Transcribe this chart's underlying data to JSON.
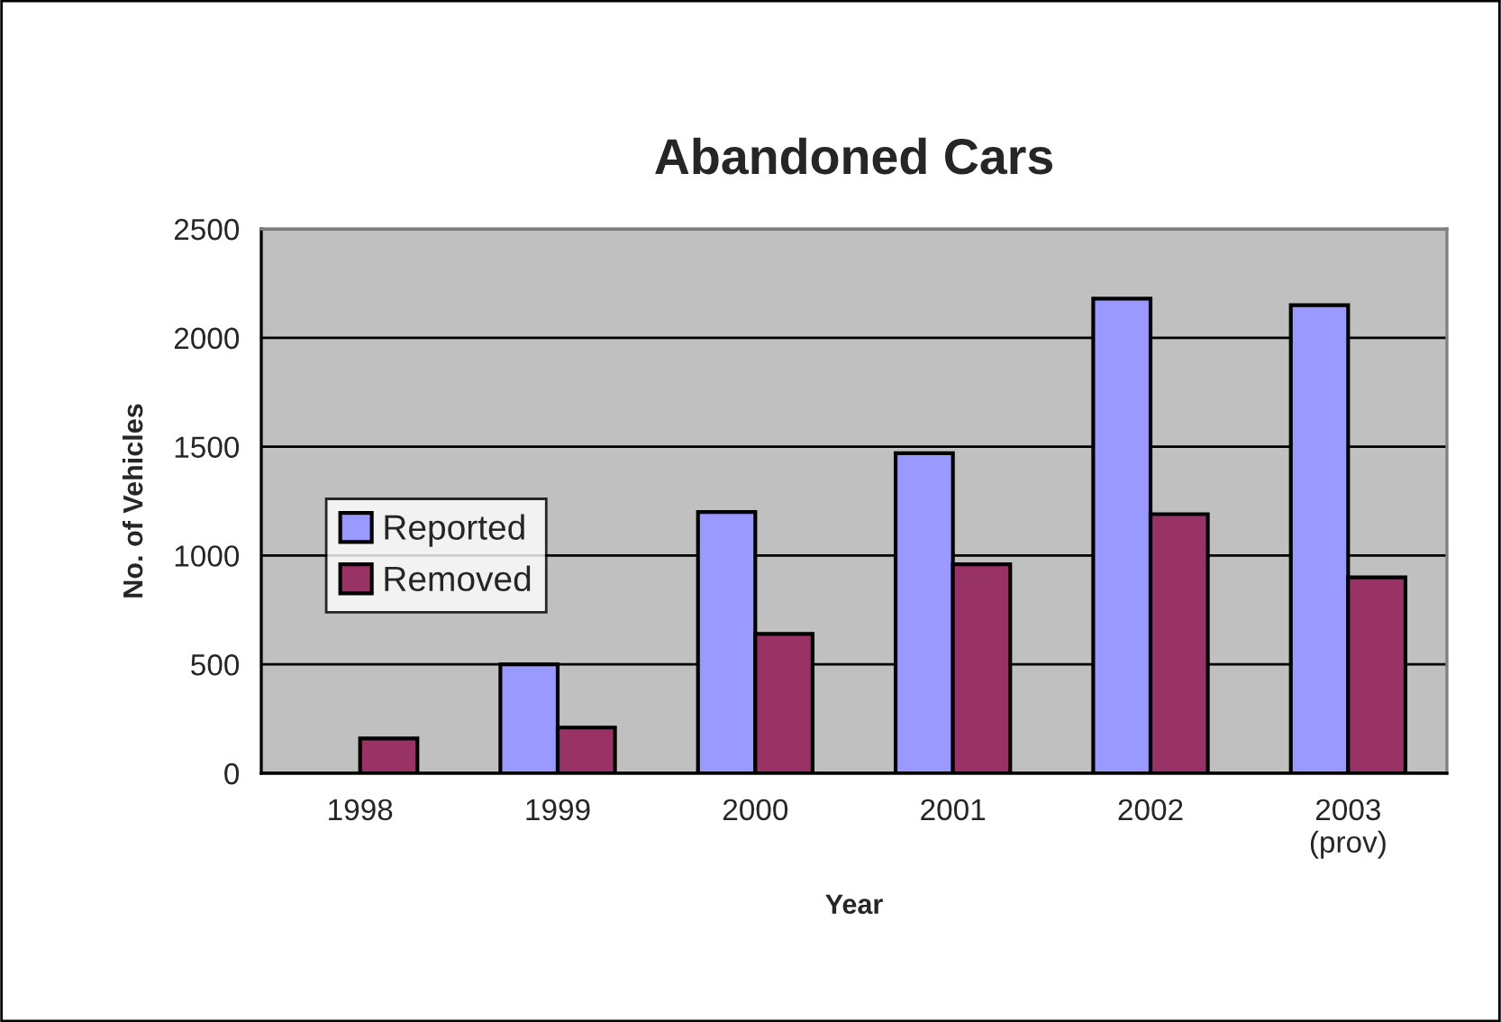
{
  "chart_data": {
    "type": "bar",
    "title": "Abandoned Cars",
    "xlabel": "Year",
    "ylabel": "No. of Vehicles",
    "categories": [
      "1998",
      "1999",
      "2000",
      "2001",
      "2002",
      "2003\n(prov)"
    ],
    "series": [
      {
        "name": "Reported",
        "color": "#9999ff",
        "values": [
          null,
          500,
          1200,
          1470,
          2180,
          2150
        ]
      },
      {
        "name": "Removed",
        "color": "#993366",
        "values": [
          160,
          210,
          640,
          960,
          1190,
          900
        ]
      }
    ],
    "ylim": [
      0,
      2500
    ],
    "yticks": [
      0,
      500,
      1000,
      1500,
      2000,
      2500
    ],
    "grid": "y",
    "legend": "left"
  }
}
